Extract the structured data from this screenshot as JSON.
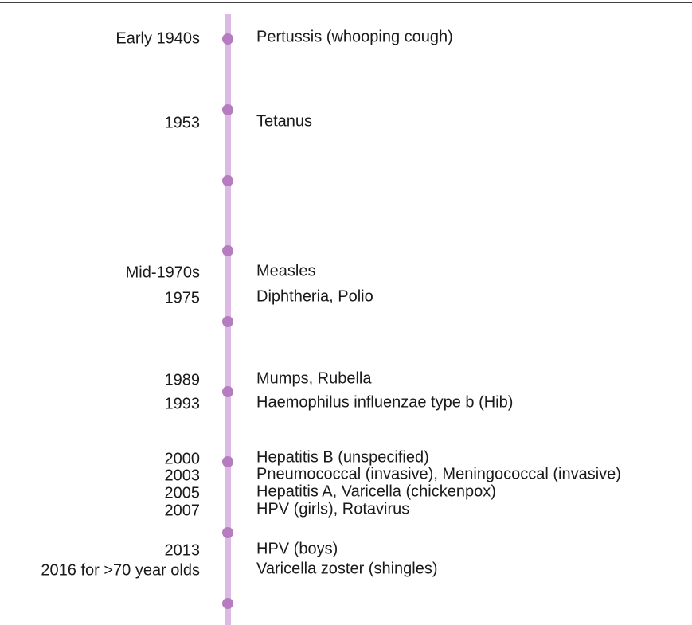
{
  "timeline": {
    "entries": [
      {
        "date": "Early 1940s",
        "label": "Pertussis (whooping cough)"
      },
      {
        "date": "1953",
        "label": "Tetanus"
      },
      {
        "date": "Mid-1970s",
        "label": "Measles"
      },
      {
        "date": "1975",
        "label": "Diphtheria, Polio"
      },
      {
        "date": "1989",
        "label": "Mumps, Rubella"
      },
      {
        "date": "1993",
        "label": "Haemophilus influenzae type b (Hib)"
      },
      {
        "date": "2000",
        "label": "Hepatitis B (unspecified)"
      },
      {
        "date": "2003",
        "label": "Pneumococcal (invasive), Meningococcal (invasive)"
      },
      {
        "date": "2005",
        "label": "Hepatitis A, Varicella (chickenpox)"
      },
      {
        "date": "2007",
        "label": "HPV (girls), Rotavirus"
      },
      {
        "date": "2013",
        "label": "HPV (boys)"
      },
      {
        "date": "2016 for >70 year olds",
        "label": "Varicella zoster (shingles)"
      }
    ]
  }
}
